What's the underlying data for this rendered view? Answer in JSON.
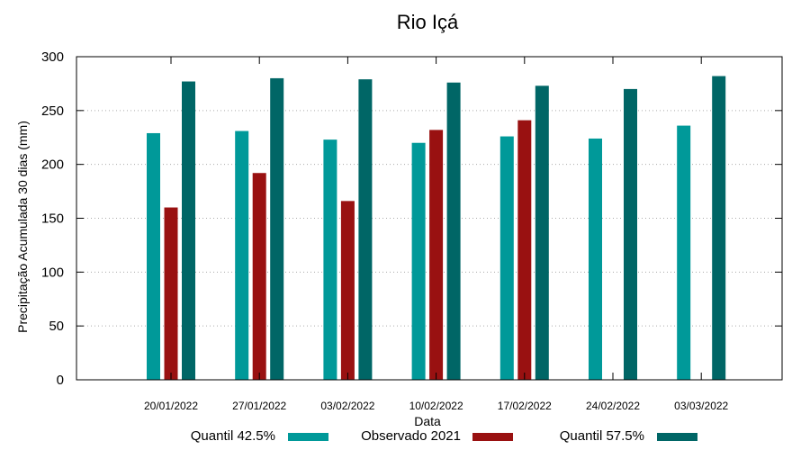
{
  "chart_data": {
    "type": "bar",
    "title": "Rio Içá",
    "xlabel": "Data",
    "ylabel": "Precipitação Acumulada 30 dias (mm)",
    "ylim": [
      0,
      300
    ],
    "yticks": [
      0,
      50,
      100,
      150,
      200,
      250,
      300
    ],
    "grid": true,
    "legend_position": "bottom",
    "categories": [
      "20/01/2022",
      "27/01/2022",
      "03/02/2022",
      "10/02/2022",
      "17/02/2022",
      "24/02/2022",
      "03/03/2022"
    ],
    "series": [
      {
        "name": "Quantil 42.5%",
        "color": "#009999",
        "values": [
          229,
          231,
          223,
          220,
          226,
          224,
          236
        ]
      },
      {
        "name": "Observado 2021",
        "color": "#991111",
        "values": [
          160,
          192,
          166,
          232,
          241,
          null,
          null
        ]
      },
      {
        "name": "Quantil 57.5%",
        "color": "#006666",
        "values": [
          277,
          280,
          279,
          276,
          273,
          270,
          282
        ]
      }
    ]
  }
}
